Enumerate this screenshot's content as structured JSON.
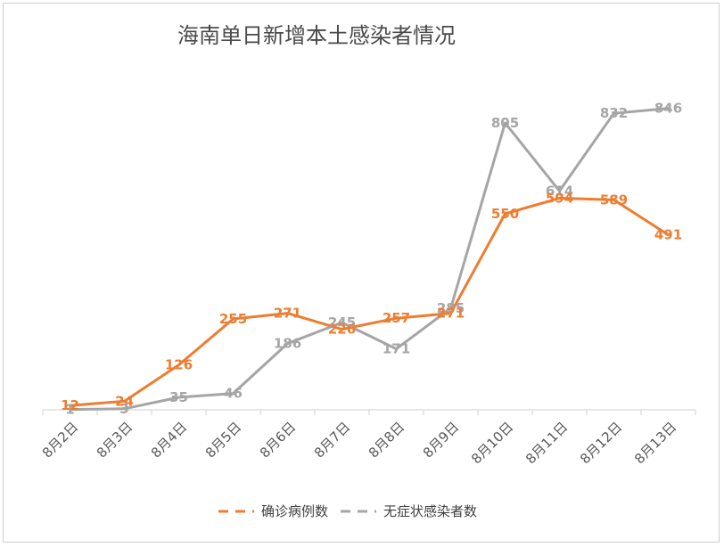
{
  "chart_data": {
    "type": "line",
    "title": "海南单日新增本土感染者情况",
    "categories": [
      "8月2日",
      "8月3日",
      "8月4日",
      "8月5日",
      "8月6日",
      "8月7日",
      "8月8日",
      "8月9日",
      "8月10日",
      "8月11日",
      "8月12日",
      "8月13日"
    ],
    "series": [
      {
        "name": "确诊病例数",
        "color": "#ED7D31",
        "values": [
          12,
          24,
          126,
          255,
          271,
          226,
          257,
          271,
          550,
          594,
          589,
          491
        ]
      },
      {
        "name": "无症状感染者数",
        "color": "#A5A5A5",
        "values": [
          1,
          3,
          35,
          46,
          186,
          245,
          171,
          285,
          805,
          614,
          832,
          846
        ]
      }
    ],
    "ylim": [
      0,
      880
    ],
    "grid": false,
    "legend": "bottom",
    "xlabel": "",
    "ylabel": ""
  }
}
